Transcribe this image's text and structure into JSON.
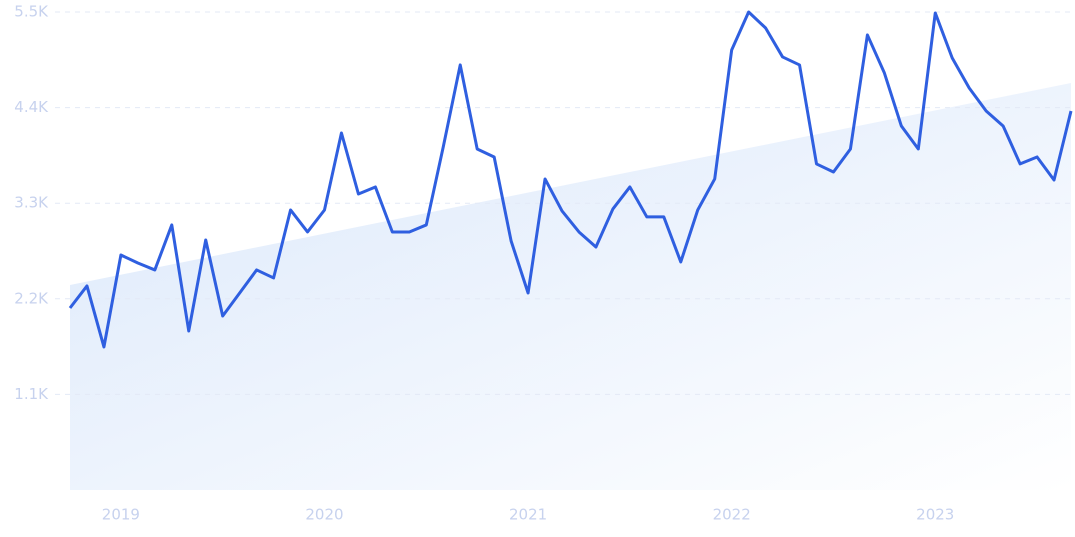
{
  "chart_data": {
    "type": "line",
    "x": [
      2018.75,
      2018.8333,
      2018.9167,
      2019,
      2019.0833,
      2019.1667,
      2019.25,
      2019.3333,
      2019.4167,
      2019.5,
      2019.5833,
      2019.6667,
      2019.75,
      2019.8333,
      2019.9167,
      2020,
      2020.0833,
      2020.1667,
      2020.25,
      2020.3333,
      2020.4167,
      2020.5,
      2020.5833,
      2020.6667,
      2020.75,
      2020.8333,
      2020.9167,
      2021,
      2021.0833,
      2021.1667,
      2021.25,
      2021.3333,
      2021.4167,
      2021.5,
      2021.5833,
      2021.6667,
      2021.75,
      2021.8333,
      2021.9167,
      2022,
      2022.0833,
      2022.1667,
      2022.25,
      2022.3333,
      2022.4167,
      2022.5,
      2022.5833,
      2022.6667,
      2022.75,
      2022.8333,
      2022.9167,
      2023,
      2023.0833,
      2023.1667,
      2023.25,
      2023.3333,
      2023.4167,
      2023.5,
      2023.5833,
      2023.6667
    ],
    "series": [
      {
        "color": "#2f5fe0",
        "values": [
          2094,
          2348,
          1646,
          2704,
          2612,
          2532,
          3050,
          1830,
          2877,
          2002,
          2267,
          2532,
          2440,
          3222,
          2969,
          3222,
          4108,
          3406,
          3487,
          2969,
          2969,
          3050,
          3947,
          4891,
          3924,
          3832,
          2865,
          2267,
          3579,
          3211,
          2969,
          2796,
          3234,
          3487,
          3142,
          3142,
          2624,
          3222,
          3579,
          5063,
          5500,
          5316,
          4983,
          4891,
          3752,
          3659,
          3924,
          5236,
          4799,
          4189,
          3924,
          5489,
          4971,
          4626,
          4361,
          4189,
          3752,
          3832,
          3567,
          4361
        ]
      }
    ],
    "trend": {
      "x": [
        2018.75,
        2023.6667
      ],
      "values": [
        2359,
        4683
      ],
      "color": "#dbe8fb"
    },
    "xlim": [
      2018.75,
      2023.6667
    ],
    "xticks": [
      2019,
      2020,
      2021,
      2022,
      2023
    ],
    "ylim": [
      0,
      5500
    ],
    "yticks": [
      {
        "value": 1100,
        "label": "1.1K"
      },
      {
        "value": 2200,
        "label": "2.2K"
      },
      {
        "value": 3300,
        "label": "3.3K"
      },
      {
        "value": 4400,
        "label": "4.4K"
      },
      {
        "value": 5500,
        "label": "5.5K"
      }
    ],
    "grid": true
  }
}
